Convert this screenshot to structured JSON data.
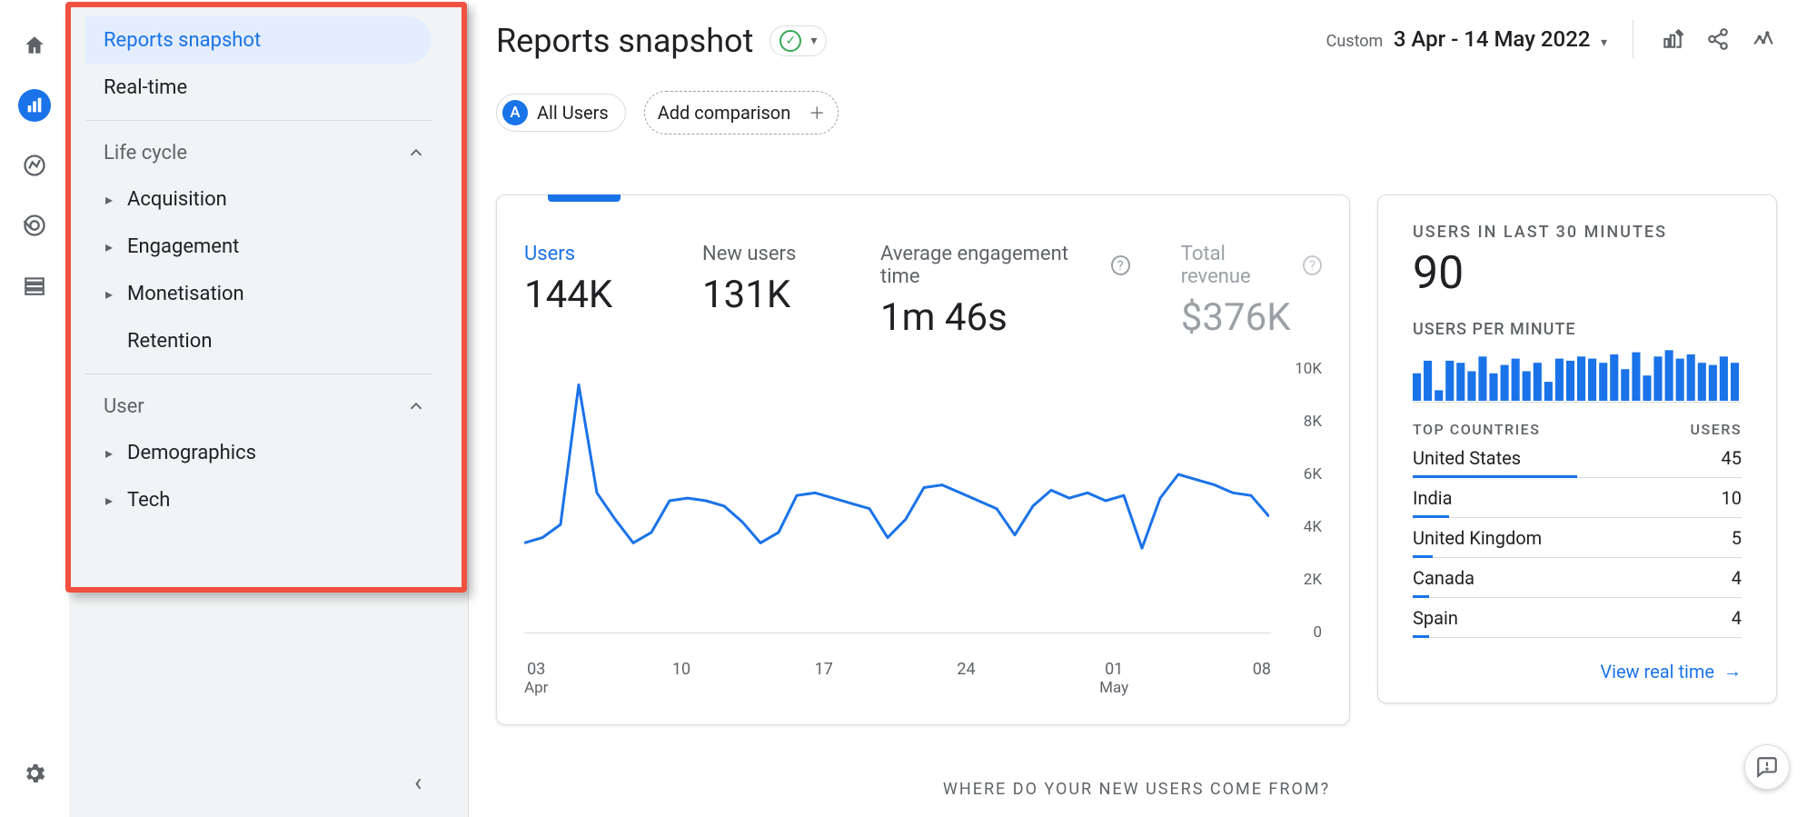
{
  "rail": {
    "items": [
      "home",
      "reports",
      "explore",
      "advertising",
      "configure"
    ],
    "active": 1
  },
  "sidebar": {
    "selected": "Reports snapshot",
    "realtime": "Real-time",
    "groups": [
      {
        "label": "Life cycle",
        "items": [
          "Acquisition",
          "Engagement",
          "Monetisation",
          "Retention"
        ]
      },
      {
        "label": "User",
        "items": [
          "Demographics",
          "Tech"
        ]
      }
    ]
  },
  "header": {
    "title": "Reports snapshot",
    "segment": {
      "letter": "A",
      "label": "All Users"
    },
    "add_comparison": "Add comparison",
    "date": {
      "range_label": "Custom",
      "value": "3 Apr - 14 May 2022"
    }
  },
  "metrics": [
    {
      "key": "users",
      "label": "Users",
      "value": "144K",
      "active": true
    },
    {
      "key": "new_users",
      "label": "New users",
      "value": "131K"
    },
    {
      "key": "aet",
      "label": "Average engagement time",
      "value": "1m 46s",
      "help": true
    },
    {
      "key": "revenue",
      "label": "Total revenue",
      "value": "$376K",
      "help": true,
      "muted": true
    }
  ],
  "chart": {
    "type": "line",
    "color": "#1a73e8",
    "line_width": 3,
    "ylim": [
      0,
      10000
    ],
    "yticks": [
      {
        "v": 0,
        "l": "0"
      },
      {
        "v": 2000,
        "l": "2K"
      },
      {
        "v": 4000,
        "l": "4K"
      },
      {
        "v": 6000,
        "l": "6K"
      },
      {
        "v": 8000,
        "l": "8K"
      },
      {
        "v": 10000,
        "l": "10K"
      }
    ],
    "xticks": [
      {
        "l": "03",
        "sub": "Apr"
      },
      {
        "l": "10"
      },
      {
        "l": "17"
      },
      {
        "l": "24"
      },
      {
        "l": "01",
        "sub": "May"
      },
      {
        "l": "08"
      }
    ],
    "points": [
      [
        0,
        3400
      ],
      [
        1,
        3600
      ],
      [
        2,
        4100
      ],
      [
        3,
        9400
      ],
      [
        4,
        5300
      ],
      [
        5,
        4300
      ],
      [
        6,
        3400
      ],
      [
        7,
        3800
      ],
      [
        8,
        5000
      ],
      [
        9,
        5100
      ],
      [
        10,
        5000
      ],
      [
        11,
        4800
      ],
      [
        12,
        4200
      ],
      [
        13,
        3400
      ],
      [
        14,
        3800
      ],
      [
        15,
        5200
      ],
      [
        16,
        5300
      ],
      [
        17,
        5100
      ],
      [
        18,
        4900
      ],
      [
        19,
        4700
      ],
      [
        20,
        3600
      ],
      [
        21,
        4300
      ],
      [
        22,
        5500
      ],
      [
        23,
        5600
      ],
      [
        24,
        5300
      ],
      [
        25,
        5000
      ],
      [
        26,
        4700
      ],
      [
        27,
        3700
      ],
      [
        28,
        4800
      ],
      [
        29,
        5400
      ],
      [
        30,
        5100
      ],
      [
        31,
        5300
      ],
      [
        32,
        5000
      ],
      [
        33,
        5200
      ],
      [
        34,
        3200
      ],
      [
        35,
        5100
      ],
      [
        36,
        6000
      ],
      [
        37,
        5800
      ],
      [
        38,
        5600
      ],
      [
        39,
        5300
      ],
      [
        40,
        5200
      ],
      [
        41,
        4400
      ]
    ]
  },
  "realtime": {
    "title": "USERS IN LAST 30 MINUTES",
    "value": "90",
    "per_min_label": "USERS PER MINUTE",
    "bars": [
      26,
      38,
      10,
      38,
      36,
      28,
      42,
      26,
      34,
      40,
      28,
      36,
      18,
      40,
      38,
      42,
      40,
      36,
      44,
      30,
      46,
      24,
      42,
      48,
      40,
      44,
      36,
      34,
      42,
      36
    ],
    "bar_color": "#1a73e8",
    "top_countries_label": "TOP COUNTRIES",
    "users_label": "USERS",
    "countries": [
      {
        "name": "United States",
        "users": 45,
        "pct": 50
      },
      {
        "name": "India",
        "users": 10,
        "pct": 11
      },
      {
        "name": "United Kingdom",
        "users": 5,
        "pct": 6
      },
      {
        "name": "Canada",
        "users": 4,
        "pct": 5
      },
      {
        "name": "Spain",
        "users": 4,
        "pct": 5
      }
    ],
    "link": "View real time"
  },
  "section2": "WHERE DO YOUR NEW USERS COME FROM?"
}
